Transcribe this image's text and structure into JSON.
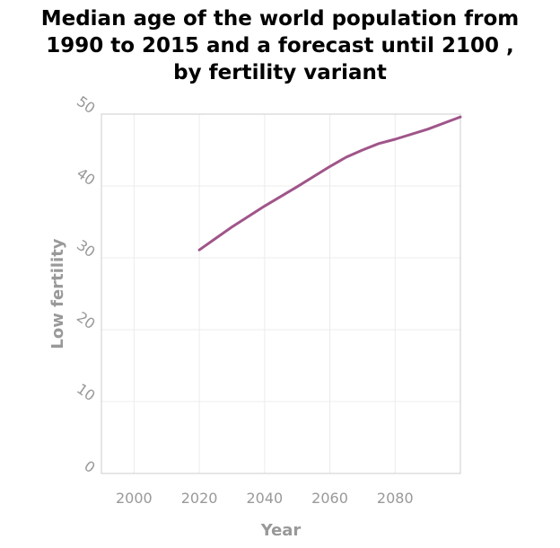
{
  "chart_data": {
    "type": "line",
    "title_lines": [
      "Median age of the world population from",
      "1990 to 2015 and a forecast until 2100 ,",
      "by fertility variant"
    ],
    "xlabel": "Year",
    "ylabel": "Low fertility",
    "xlim": [
      1990,
      2100
    ],
    "ylim": [
      0,
      50
    ],
    "x_ticks": [
      2000,
      2020,
      2040,
      2060,
      2080
    ],
    "y_ticks": [
      0,
      10,
      20,
      30,
      40,
      50
    ],
    "grid": true,
    "series": [
      {
        "color": "#a0558a",
        "x": [
          2020,
          2025,
          2030,
          2040,
          2050,
          2060,
          2065,
          2070,
          2075,
          2080,
          2090,
          2100
        ],
        "y": [
          31.1,
          32.7,
          34.3,
          37.2,
          39.9,
          42.7,
          44.0,
          45.0,
          45.9,
          46.5,
          47.9,
          49.6
        ]
      }
    ]
  }
}
